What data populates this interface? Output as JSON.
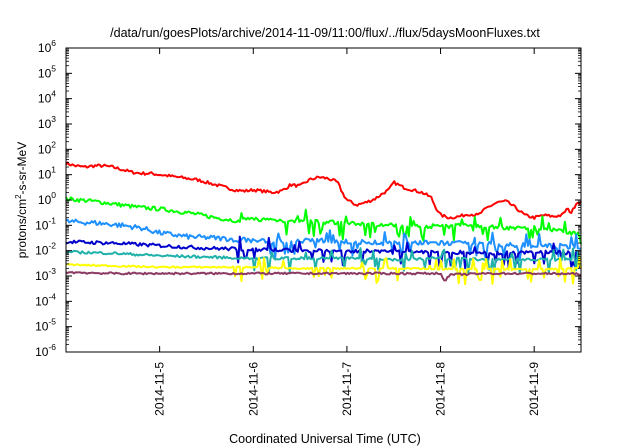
{
  "chart_data": {
    "type": "line",
    "title": "/data/run/goesPlots/archive/2014-11-09/11:00/flux/../flux/5daysMoonFluxes.txt",
    "xlabel": "Coordinated Universal Time (UTC)",
    "ylabel": {
      "prefix": "protons/cm",
      "sup": "2",
      "suffix": "-s-sr-MeV"
    },
    "yscale": "log",
    "ylim_exp": [
      -6,
      6
    ],
    "y_tick_labels": [
      {
        "base": "10",
        "exp": "6"
      },
      {
        "base": "10",
        "exp": "5"
      },
      {
        "base": "10",
        "exp": "4"
      },
      {
        "base": "10",
        "exp": "3"
      },
      {
        "base": "10",
        "exp": "2"
      },
      {
        "base": "10",
        "exp": "1"
      },
      {
        "base": "10",
        "exp": "0"
      },
      {
        "base": "10",
        "exp": "-1"
      },
      {
        "base": "10",
        "exp": "-2"
      },
      {
        "base": "10",
        "exp": "-3"
      },
      {
        "base": "10",
        "exp": "-4"
      },
      {
        "base": "10",
        "exp": "-5"
      },
      {
        "base": "10",
        "exp": "-6"
      }
    ],
    "x_day_range": [
      4.0,
      9.5
    ],
    "x_ticks": [
      {
        "day": 5,
        "label": "2014-11-5"
      },
      {
        "day": 6,
        "label": "2014-11-6"
      },
      {
        "day": 7,
        "label": "2014-11-7"
      },
      {
        "day": 8,
        "label": "2014-11-8"
      },
      {
        "day": 9,
        "label": "2014-11-9"
      }
    ],
    "series": [
      {
        "color": "#ff0000",
        "noise": 0.06,
        "spikes": false,
        "points": [
          [
            4.0,
            1.45
          ],
          [
            4.1,
            1.35
          ],
          [
            4.2,
            1.3
          ],
          [
            4.3,
            1.35
          ],
          [
            4.4,
            1.35
          ],
          [
            4.5,
            1.3
          ],
          [
            4.6,
            1.2
          ],
          [
            4.7,
            1.1
          ],
          [
            4.8,
            1.05
          ],
          [
            4.9,
            1.05
          ],
          [
            5.0,
            1.0
          ],
          [
            5.2,
            0.9
          ],
          [
            5.4,
            0.8
          ],
          [
            5.6,
            0.6
          ],
          [
            5.8,
            0.4
          ],
          [
            5.9,
            0.35
          ],
          [
            6.0,
            0.4
          ],
          [
            6.2,
            0.3
          ],
          [
            6.3,
            0.35
          ],
          [
            6.4,
            0.6
          ],
          [
            6.5,
            0.55
          ],
          [
            6.6,
            0.8
          ],
          [
            6.7,
            0.9
          ],
          [
            6.8,
            0.85
          ],
          [
            6.9,
            0.7
          ],
          [
            6.95,
            0.3
          ],
          [
            7.0,
            0.0
          ],
          [
            7.1,
            -0.2
          ],
          [
            7.2,
            -0.1
          ],
          [
            7.3,
            0.05
          ],
          [
            7.4,
            0.3
          ],
          [
            7.45,
            0.4
          ],
          [
            7.5,
            0.7
          ],
          [
            7.6,
            0.5
          ],
          [
            7.7,
            0.4
          ],
          [
            7.8,
            0.3
          ],
          [
            7.9,
            0.1
          ],
          [
            7.95,
            -0.3
          ],
          [
            8.0,
            -0.6
          ],
          [
            8.1,
            -0.7
          ],
          [
            8.2,
            -0.65
          ],
          [
            8.3,
            -0.55
          ],
          [
            8.4,
            -0.6
          ],
          [
            8.5,
            -0.3
          ],
          [
            8.6,
            -0.1
          ],
          [
            8.7,
            -0.05
          ],
          [
            8.8,
            -0.3
          ],
          [
            8.9,
            -0.6
          ],
          [
            9.0,
            -0.7
          ],
          [
            9.1,
            -0.6
          ],
          [
            9.2,
            -0.65
          ],
          [
            9.3,
            -0.6
          ],
          [
            9.35,
            -0.35
          ],
          [
            9.4,
            -0.5
          ],
          [
            9.45,
            -0.1
          ],
          [
            9.5,
            -0.1
          ]
        ]
      },
      {
        "color": "#00ff00",
        "noise": 0.08,
        "spikes": true,
        "points": [
          [
            4.0,
            0.05
          ],
          [
            4.3,
            -0.05
          ],
          [
            4.6,
            -0.2
          ],
          [
            4.8,
            -0.3
          ],
          [
            5.0,
            -0.35
          ],
          [
            5.3,
            -0.5
          ],
          [
            5.6,
            -0.7
          ],
          [
            5.8,
            -0.8
          ],
          [
            6.0,
            -0.75
          ],
          [
            6.3,
            -0.8
          ],
          [
            6.6,
            -0.85
          ],
          [
            6.9,
            -0.9
          ],
          [
            7.2,
            -0.95
          ],
          [
            7.5,
            -1.0
          ],
          [
            7.8,
            -1.05
          ],
          [
            8.1,
            -1.0
          ],
          [
            8.4,
            -1.0
          ],
          [
            8.7,
            -1.1
          ],
          [
            9.0,
            -1.1
          ],
          [
            9.3,
            -1.2
          ],
          [
            9.5,
            -1.4
          ]
        ]
      },
      {
        "color": "#1e90ff",
        "noise": 0.1,
        "spikes": true,
        "points": [
          [
            4.0,
            -0.85
          ],
          [
            4.3,
            -0.9
          ],
          [
            4.6,
            -1.0
          ],
          [
            4.8,
            -1.1
          ],
          [
            5.0,
            -1.3
          ],
          [
            5.3,
            -1.45
          ],
          [
            5.6,
            -1.5
          ],
          [
            5.8,
            -1.55
          ],
          [
            6.0,
            -1.6
          ],
          [
            6.3,
            -1.65
          ],
          [
            6.6,
            -1.6
          ],
          [
            7.0,
            -1.65
          ],
          [
            7.5,
            -1.7
          ],
          [
            8.0,
            -1.7
          ],
          [
            8.5,
            -1.75
          ],
          [
            9.0,
            -1.8
          ],
          [
            9.5,
            -1.85
          ]
        ]
      },
      {
        "color": "#0000cd",
        "noise": 0.07,
        "spikes": true,
        "points": [
          [
            4.0,
            -1.65
          ],
          [
            4.5,
            -1.7
          ],
          [
            5.0,
            -1.8
          ],
          [
            5.5,
            -1.9
          ],
          [
            6.0,
            -1.95
          ],
          [
            6.5,
            -2.0
          ],
          [
            7.0,
            -2.0
          ],
          [
            7.5,
            -2.05
          ],
          [
            8.0,
            -2.05
          ],
          [
            8.5,
            -2.1
          ],
          [
            9.0,
            -2.05
          ],
          [
            9.5,
            -2.1
          ]
        ]
      },
      {
        "color": "#20b2aa",
        "noise": 0.05,
        "spikes": true,
        "points": [
          [
            4.0,
            -2.05
          ],
          [
            4.5,
            -2.1
          ],
          [
            5.0,
            -2.2
          ],
          [
            5.5,
            -2.25
          ],
          [
            6.0,
            -2.3
          ],
          [
            6.5,
            -2.3
          ],
          [
            7.0,
            -2.3
          ],
          [
            7.5,
            -2.35
          ],
          [
            8.0,
            -2.3
          ],
          [
            8.5,
            -2.35
          ],
          [
            9.0,
            -2.35
          ],
          [
            9.5,
            -2.35
          ]
        ]
      },
      {
        "color": "#ffff00",
        "noise": 0.03,
        "spikes": true,
        "points": [
          [
            4.0,
            -2.55
          ],
          [
            4.5,
            -2.6
          ],
          [
            5.0,
            -2.65
          ],
          [
            5.5,
            -2.65
          ],
          [
            6.0,
            -2.65
          ],
          [
            6.5,
            -2.7
          ],
          [
            7.0,
            -2.7
          ],
          [
            7.5,
            -2.7
          ],
          [
            8.0,
            -2.72
          ],
          [
            8.5,
            -2.72
          ],
          [
            9.0,
            -2.75
          ],
          [
            9.5,
            -2.7
          ]
        ]
      },
      {
        "color": "#8b3a62",
        "noise": 0.04,
        "spikes": false,
        "points": [
          [
            4.0,
            -2.85
          ],
          [
            4.5,
            -2.9
          ],
          [
            5.0,
            -2.9
          ],
          [
            5.5,
            -2.9
          ],
          [
            6.0,
            -2.9
          ],
          [
            6.5,
            -2.9
          ],
          [
            7.0,
            -2.9
          ],
          [
            7.5,
            -2.9
          ],
          [
            8.0,
            -2.9
          ],
          [
            8.05,
            -3.2
          ],
          [
            8.1,
            -2.95
          ],
          [
            8.5,
            -2.9
          ],
          [
            9.0,
            -2.9
          ],
          [
            9.5,
            -2.92
          ]
        ]
      }
    ]
  }
}
